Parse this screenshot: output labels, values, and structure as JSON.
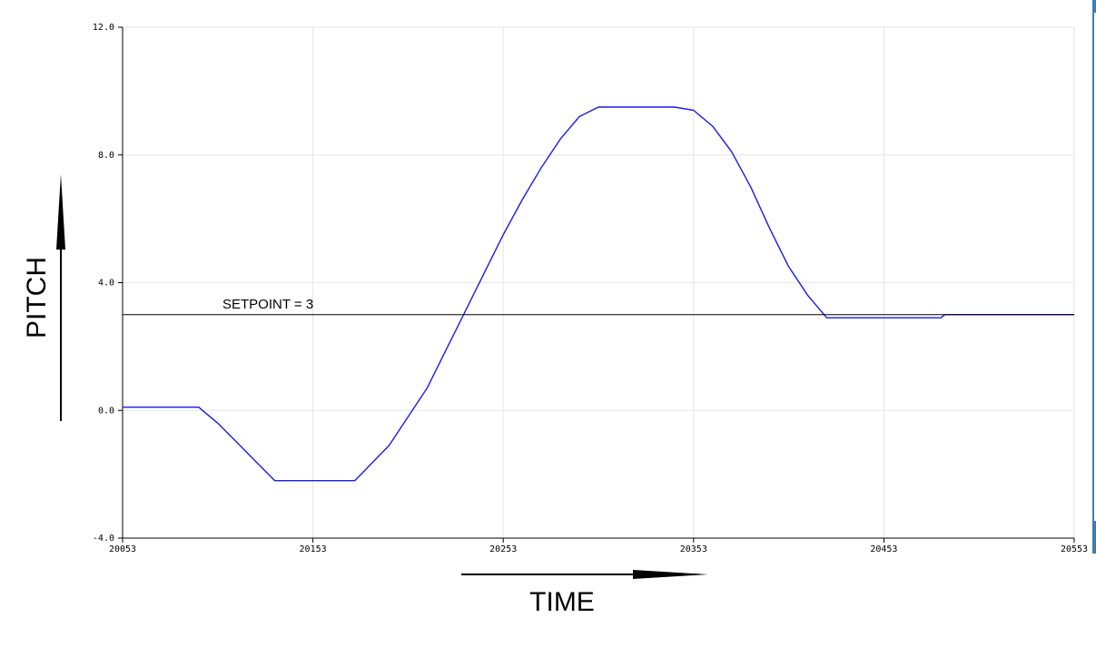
{
  "chart_data": {
    "type": "line",
    "xlabel": "TIME",
    "ylabel": "PITCH",
    "xlim": [
      20053,
      20553
    ],
    "ylim": [
      -4.0,
      12.0
    ],
    "x_ticks": [
      "20053",
      "20153",
      "20253",
      "20353",
      "20453",
      "20553"
    ],
    "y_ticks": [
      "12.0",
      "8.0",
      "4.0",
      "0.0",
      "-4.0"
    ],
    "grid": true,
    "annotations": [
      {
        "text": "SETPOINT = 3"
      }
    ],
    "series": [
      {
        "color": "#1a1aee",
        "x": [
          20053,
          20093,
          20103,
          20113,
          20123,
          20133,
          20143,
          20160,
          20175,
          20193,
          20213,
          20223,
          20233,
          20243,
          20253,
          20263,
          20273,
          20283,
          20293,
          20303,
          20313,
          20330,
          20343,
          20353,
          20363,
          20373,
          20383,
          20393,
          20403,
          20413,
          20423,
          20433,
          20483,
          20485,
          20553
        ],
        "y": [
          0.1,
          0.1,
          -0.4,
          -1.0,
          -1.6,
          -2.2,
          -2.2,
          -2.2,
          -2.2,
          -1.1,
          0.7,
          1.9,
          3.1,
          4.3,
          5.5,
          6.6,
          7.6,
          8.5,
          9.2,
          9.5,
          9.5,
          9.5,
          9.5,
          9.4,
          8.9,
          8.1,
          7.0,
          5.7,
          4.5,
          3.6,
          2.9,
          2.9,
          2.9,
          3.0,
          3.0
        ]
      },
      {
        "color": "#000000",
        "x": [
          20053,
          20553
        ],
        "y": [
          3.0,
          3.0
        ]
      }
    ]
  }
}
